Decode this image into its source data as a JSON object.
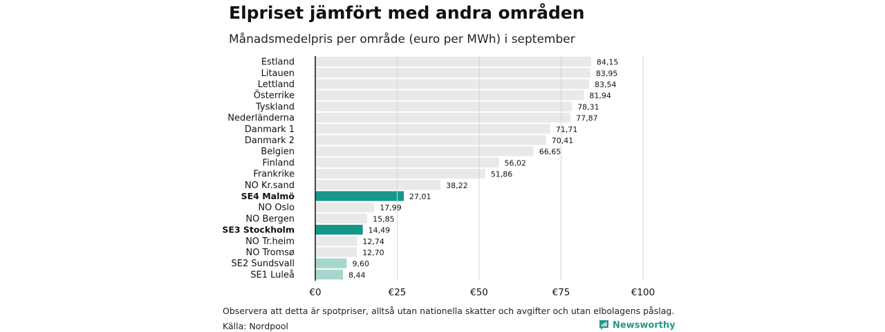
{
  "header": {
    "title": "Elpriset jämfört med andra områden",
    "subtitle": "Månadsmedelpris per område (euro per MWh) i september"
  },
  "footer": {
    "note": "Observera att detta är spotpriser, alltså utan nationella skatter och avgifter och utan elbolagens påslag.",
    "source": "Källa: Nordpool",
    "brand": "Newsworthy"
  },
  "colors": {
    "default_bar": "#e9e9e9",
    "highlight_strong": "#17968a",
    "highlight_light": "#a7d6ce",
    "axis": "#111111",
    "grid": "#d4d4d4"
  },
  "chart_data": {
    "type": "bar",
    "orientation": "horizontal",
    "title": "Elpriset jämfört med andra områden",
    "subtitle": "Månadsmedelpris per område (euro per MWh) i september",
    "xlim": [
      0,
      100
    ],
    "xticks": [
      0,
      25,
      50,
      75,
      100
    ],
    "xtick_labels": [
      "€0",
      "€25",
      "€50",
      "€75",
      "€100"
    ],
    "grid": true,
    "categories": [
      "Estland",
      "Litauen",
      "Lettland",
      "Österrike",
      "Tyskland",
      "Nederländerna",
      "Danmark 1",
      "Danmark 2",
      "Belgien",
      "Finland",
      "Frankrike",
      "NO Kr.sand",
      "SE4 Malmö",
      "NO Oslo",
      "NO Bergen",
      "SE3 Stockholm",
      "NO Tr.heim",
      "NO Tromsø",
      "SE2 Sundsvall",
      "SE1 Luleå"
    ],
    "values": [
      84.15,
      83.95,
      83.54,
      81.94,
      78.31,
      77.87,
      71.71,
      70.41,
      66.65,
      56.02,
      51.86,
      38.22,
      27.01,
      17.99,
      15.85,
      14.49,
      12.74,
      12.7,
      9.6,
      8.44
    ],
    "value_labels": [
      "84,15",
      "83,95",
      "83,54",
      "81,94",
      "78,31",
      "77,87",
      "71,71",
      "70,41",
      "66,65",
      "56,02",
      "51,86",
      "38,22",
      "27,01",
      "17,99",
      "15,85",
      "14,49",
      "12,74",
      "12,70",
      "9,60",
      "8,44"
    ],
    "highlight": [
      "none",
      "none",
      "none",
      "none",
      "none",
      "none",
      "none",
      "none",
      "none",
      "none",
      "none",
      "none",
      "strong",
      "none",
      "none",
      "strong",
      "none",
      "none",
      "light",
      "light"
    ],
    "bold_labels": [
      "SE4 Malmö",
      "SE3 Stockholm"
    ]
  }
}
